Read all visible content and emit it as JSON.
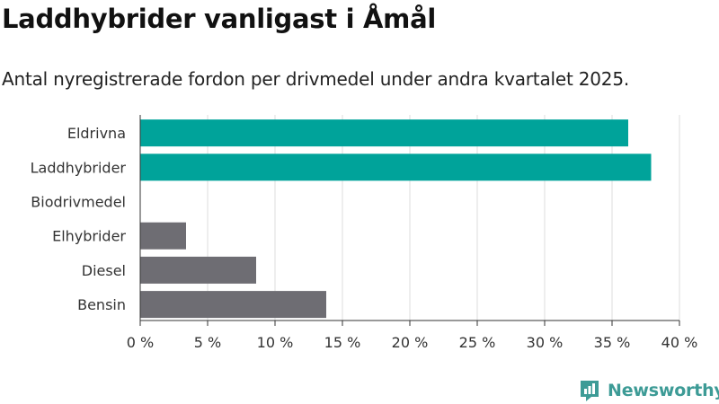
{
  "title": "Laddhybrider vanligast i Åmål",
  "subtitle": "Antal nyregistrerade fordon per drivmedel under andra kvartalet 2025.",
  "brand": {
    "name": "Newsworthy",
    "icon": "newsworthy-logo-icon",
    "color": "#3d9b96"
  },
  "colors": {
    "highlight": "#00a39a",
    "default": "#6e6d73",
    "grid": "#dddddd",
    "axis": "#333333"
  },
  "chart_data": {
    "type": "bar",
    "orientation": "horizontal",
    "categories": [
      "Eldrivna",
      "Laddhybrider",
      "Biodrivmedel",
      "Elhybrider",
      "Diesel",
      "Bensin"
    ],
    "values": [
      36.2,
      37.9,
      0,
      3.4,
      8.6,
      13.8
    ],
    "bar_colors": [
      "#00a39a",
      "#00a39a",
      "#6e6d73",
      "#6e6d73",
      "#6e6d73",
      "#6e6d73"
    ],
    "xlim": [
      0,
      40
    ],
    "xticks": [
      0,
      5,
      10,
      15,
      20,
      25,
      30,
      35,
      40
    ],
    "tick_labels": [
      "0 %",
      "5 %",
      "10 %",
      "15 %",
      "20 %",
      "25 %",
      "30 %",
      "35 %",
      "40 %"
    ],
    "grid": true
  }
}
